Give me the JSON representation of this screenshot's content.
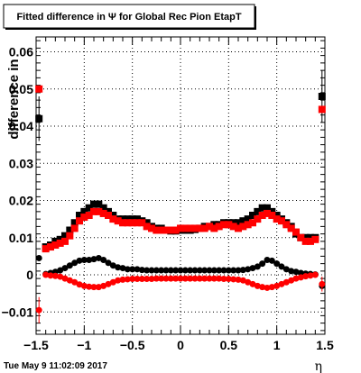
{
  "chart_data": {
    "type": "scatter",
    "title": "Fitted difference in  Ψ  for Global Rec Pion EtapT",
    "xlabel": "η",
    "ylabel": "difference in",
    "xlim": [
      -1.5,
      1.5
    ],
    "ylim": [
      -0.016,
      0.064
    ],
    "grid": true,
    "x_ticks": [
      "−1.5",
      "−1",
      "−0.5",
      "0",
      "0.5",
      "1",
      "1.5"
    ],
    "y_ticks": [
      "−0.01",
      "0",
      "0.01",
      "0.02",
      "0.03",
      "0.04",
      "0.05",
      "0.06"
    ],
    "footer": "Tue May  9 11:02:09 2017",
    "series": [
      {
        "color": "#000000",
        "marker": "square",
        "x": [
          -1.47,
          -1.4,
          -1.35,
          -1.3,
          -1.25,
          -1.2,
          -1.15,
          -1.1,
          -1.05,
          -1.0,
          -0.95,
          -0.9,
          -0.85,
          -0.8,
          -0.75,
          -0.7,
          -0.65,
          -0.6,
          -0.55,
          -0.5,
          -0.45,
          -0.4,
          -0.35,
          -0.3,
          -0.25,
          -0.2,
          -0.15,
          -0.1,
          -0.05,
          0.0,
          0.05,
          0.1,
          0.15,
          0.2,
          0.25,
          0.3,
          0.35,
          0.4,
          0.45,
          0.5,
          0.55,
          0.6,
          0.65,
          0.7,
          0.75,
          0.8,
          0.85,
          0.9,
          0.95,
          1.0,
          1.05,
          1.1,
          1.15,
          1.2,
          1.25,
          1.3,
          1.35,
          1.4,
          1.47
        ],
        "y": [
          0.042,
          0.0075,
          0.008,
          0.009,
          0.0095,
          0.0105,
          0.012,
          0.014,
          0.016,
          0.017,
          0.018,
          0.019,
          0.019,
          0.018,
          0.017,
          0.016,
          0.015,
          0.015,
          0.015,
          0.015,
          0.015,
          0.0145,
          0.014,
          0.013,
          0.0125,
          0.0125,
          0.012,
          0.0118,
          0.0118,
          0.012,
          0.012,
          0.012,
          0.0122,
          0.0125,
          0.013,
          0.013,
          0.0135,
          0.0135,
          0.014,
          0.014,
          0.014,
          0.014,
          0.0145,
          0.015,
          0.016,
          0.017,
          0.018,
          0.018,
          0.017,
          0.016,
          0.015,
          0.014,
          0.013,
          0.011,
          0.01,
          0.01,
          0.01,
          0.01,
          0.048
        ],
        "err": [
          0.006,
          0.0,
          0.0,
          0.0,
          0.0,
          0.0,
          0.0,
          0.0,
          0.0,
          0.0,
          0.0,
          0.0,
          0.0,
          0.0,
          0.0,
          0.0,
          0.0,
          0.0,
          0.0,
          0.0,
          0.0,
          0.0,
          0.0,
          0.0,
          0.0,
          0.0,
          0.0,
          0.0,
          0.0,
          0.0,
          0.0,
          0.0,
          0.0,
          0.0,
          0.0,
          0.0,
          0.0,
          0.0,
          0.0,
          0.0,
          0.0,
          0.0,
          0.0,
          0.0,
          0.0,
          0.0,
          0.0,
          0.0,
          0.0,
          0.0,
          0.0,
          0.0,
          0.0,
          0.0,
          0.0,
          0.0,
          0.0,
          0.0,
          0.007
        ]
      },
      {
        "color": "#ff0000",
        "marker": "square",
        "x": [
          -1.47,
          -1.4,
          -1.35,
          -1.3,
          -1.25,
          -1.2,
          -1.15,
          -1.1,
          -1.05,
          -1.0,
          -0.95,
          -0.9,
          -0.85,
          -0.8,
          -0.75,
          -0.7,
          -0.65,
          -0.6,
          -0.55,
          -0.5,
          -0.45,
          -0.4,
          -0.35,
          -0.3,
          -0.25,
          -0.2,
          -0.15,
          -0.1,
          -0.05,
          0.0,
          0.05,
          0.1,
          0.15,
          0.2,
          0.25,
          0.3,
          0.35,
          0.4,
          0.45,
          0.5,
          0.55,
          0.6,
          0.65,
          0.7,
          0.75,
          0.8,
          0.85,
          0.9,
          0.95,
          1.0,
          1.05,
          1.1,
          1.15,
          1.2,
          1.25,
          1.3,
          1.35,
          1.4,
          1.47
        ],
        "y": [
          0.05,
          0.007,
          0.0075,
          0.008,
          0.0085,
          0.009,
          0.0105,
          0.0125,
          0.0145,
          0.0155,
          0.016,
          0.017,
          0.017,
          0.0165,
          0.016,
          0.015,
          0.0145,
          0.014,
          0.014,
          0.014,
          0.014,
          0.014,
          0.013,
          0.0125,
          0.012,
          0.012,
          0.012,
          0.012,
          0.012,
          0.0125,
          0.0125,
          0.0125,
          0.0125,
          0.0125,
          0.0125,
          0.013,
          0.0125,
          0.013,
          0.0135,
          0.0135,
          0.013,
          0.0125,
          0.013,
          0.0135,
          0.014,
          0.015,
          0.016,
          0.0165,
          0.016,
          0.015,
          0.0145,
          0.0135,
          0.0125,
          0.0115,
          0.01,
          0.009,
          0.009,
          0.0095,
          0.0445
        ]
      },
      {
        "color": "#000000",
        "marker": "circle",
        "x": [
          -1.47,
          -1.4,
          -1.35,
          -1.3,
          -1.25,
          -1.2,
          -1.15,
          -1.1,
          -1.05,
          -1.0,
          -0.95,
          -0.9,
          -0.85,
          -0.8,
          -0.75,
          -0.7,
          -0.65,
          -0.6,
          -0.55,
          -0.5,
          -0.45,
          -0.4,
          -0.35,
          -0.3,
          -0.25,
          -0.2,
          -0.15,
          -0.1,
          -0.05,
          0.0,
          0.05,
          0.1,
          0.15,
          0.2,
          0.25,
          0.3,
          0.35,
          0.4,
          0.45,
          0.5,
          0.55,
          0.6,
          0.65,
          0.7,
          0.75,
          0.8,
          0.85,
          0.9,
          0.95,
          1.0,
          1.05,
          1.1,
          1.15,
          1.2,
          1.25,
          1.3,
          1.35,
          1.4,
          1.47
        ],
        "y": [
          0.0045,
          0.0002,
          0.0005,
          0.0008,
          0.0012,
          0.0018,
          0.0025,
          0.0032,
          0.0038,
          0.004,
          0.004,
          0.0042,
          0.0045,
          0.004,
          0.0032,
          0.0025,
          0.002,
          0.0018,
          0.0015,
          0.0015,
          0.0015,
          0.0013,
          0.0012,
          0.0012,
          0.0012,
          0.0012,
          0.0012,
          0.0012,
          0.0012,
          0.0012,
          0.0012,
          0.0012,
          0.0012,
          0.0012,
          0.0012,
          0.0012,
          0.0012,
          0.0012,
          0.0012,
          0.0012,
          0.0012,
          0.0012,
          0.0013,
          0.0015,
          0.0018,
          0.0022,
          0.003,
          0.004,
          0.0038,
          0.003,
          0.0022,
          0.0015,
          0.001,
          0.0008,
          0.0005,
          0.0003,
          0.0002,
          0.0001,
          -0.003
        ]
      },
      {
        "color": "#ff0000",
        "marker": "circle",
        "x": [
          -1.47,
          -1.4,
          -1.35,
          -1.3,
          -1.25,
          -1.2,
          -1.15,
          -1.1,
          -1.05,
          -1.0,
          -0.95,
          -0.9,
          -0.85,
          -0.8,
          -0.75,
          -0.7,
          -0.65,
          -0.6,
          -0.55,
          -0.5,
          -0.45,
          -0.4,
          -0.35,
          -0.3,
          -0.25,
          -0.2,
          -0.15,
          -0.1,
          -0.05,
          0.0,
          0.05,
          0.1,
          0.15,
          0.2,
          0.25,
          0.3,
          0.35,
          0.4,
          0.45,
          0.5,
          0.55,
          0.6,
          0.65,
          0.7,
          0.75,
          0.8,
          0.85,
          0.9,
          0.95,
          1.0,
          1.05,
          1.1,
          1.15,
          1.2,
          1.25,
          1.3,
          1.35,
          1.4,
          1.47
        ],
        "y": [
          -0.0095,
          0.0,
          -0.0002,
          -0.0003,
          -0.0005,
          -0.001,
          -0.0015,
          -0.002,
          -0.0026,
          -0.003,
          -0.0032,
          -0.0033,
          -0.0033,
          -0.003,
          -0.0025,
          -0.002,
          -0.0015,
          -0.0013,
          -0.0012,
          -0.0011,
          -0.0011,
          -0.0011,
          -0.0011,
          -0.0011,
          -0.001,
          -0.001,
          -0.001,
          -0.001,
          -0.001,
          -0.001,
          -0.001,
          -0.001,
          -0.001,
          -0.001,
          -0.001,
          -0.001,
          -0.001,
          -0.001,
          -0.0011,
          -0.0011,
          -0.0012,
          -0.0013,
          -0.0015,
          -0.002,
          -0.0025,
          -0.003,
          -0.0033,
          -0.0035,
          -0.0033,
          -0.003,
          -0.0025,
          -0.002,
          -0.0015,
          -0.001,
          -0.0007,
          -0.0004,
          -0.0002,
          0.0,
          -0.0025
        ],
        "err": [
          0.0035,
          0.0,
          0.0,
          0.0,
          0.0,
          0.0,
          0.0,
          0.0,
          0.0,
          0.0,
          0.0,
          0.0,
          0.0,
          0.0,
          0.0,
          0.0,
          0.0,
          0.0,
          0.0,
          0.0,
          0.0,
          0.0,
          0.0,
          0.0,
          0.0,
          0.0,
          0.0,
          0.0,
          0.0,
          0.0,
          0.0,
          0.0,
          0.0,
          0.0,
          0.0,
          0.0,
          0.0,
          0.0,
          0.0,
          0.0,
          0.0,
          0.0,
          0.0,
          0.0,
          0.0,
          0.0,
          0.0,
          0.0,
          0.0,
          0.0,
          0.0,
          0.0,
          0.0,
          0.0,
          0.0,
          0.0,
          0.0,
          0.0,
          0.002
        ]
      }
    ]
  }
}
